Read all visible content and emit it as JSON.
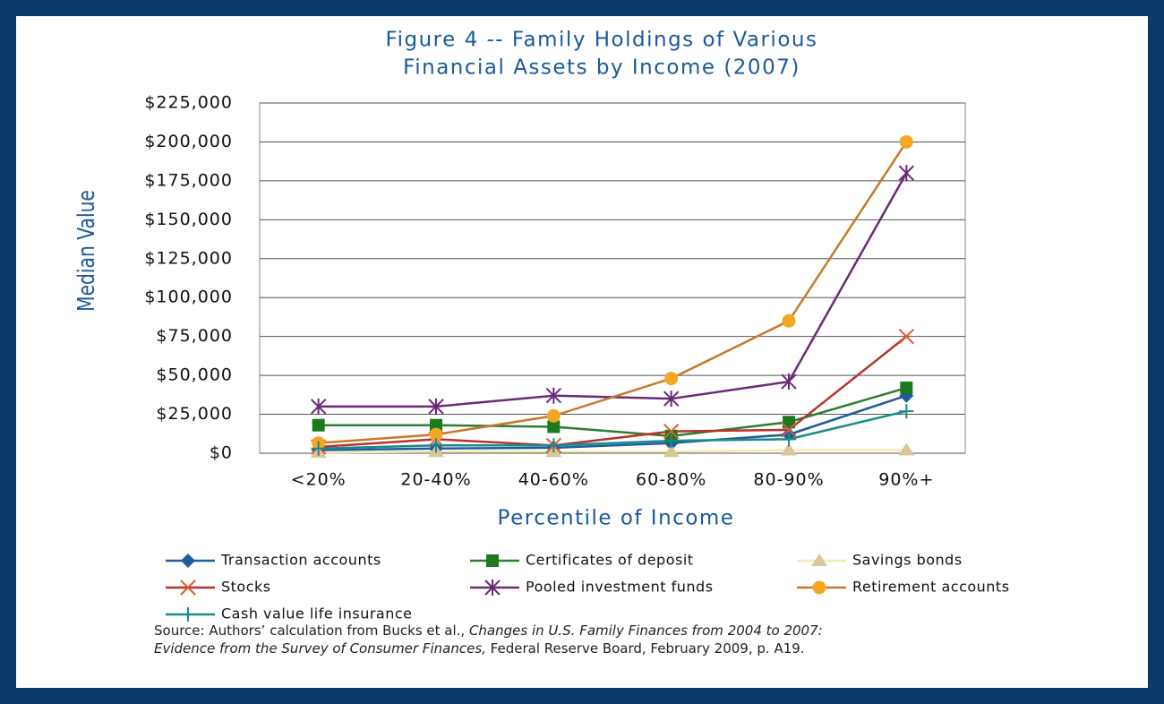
{
  "chart_data": {
    "type": "line",
    "title": [
      "Figure 4 -- Family Holdings of Various",
      "Financial Assets by Income (2007)"
    ],
    "y_label": "Median Value",
    "x_label": "Percentile of Income",
    "categories": [
      "<20%",
      "20-40%",
      "40-60%",
      "60-80%",
      "80-90%",
      "90%+"
    ],
    "ylim": [
      0,
      225000
    ],
    "yticks": [
      {
        "value": 0,
        "label": "$0"
      },
      {
        "value": 25000,
        "label": "$25,000"
      },
      {
        "value": 50000,
        "label": "$50,000"
      },
      {
        "value": 75000,
        "label": "$75,000"
      },
      {
        "value": 100000,
        "label": "$100,000"
      },
      {
        "value": 125000,
        "label": "$125,000"
      },
      {
        "value": 150000,
        "label": "$150,000"
      },
      {
        "value": 175000,
        "label": "$175,000"
      },
      {
        "value": 200000,
        "label": "$200,000"
      },
      {
        "value": 225000,
        "label": "$225,000"
      }
    ],
    "grid": true,
    "series": [
      {
        "name": "Transaction accounts",
        "color": "#1f5b9e",
        "marker": "diamond",
        "marker_color": "#1f5b9e",
        "values": [
          2000,
          3000,
          3500,
          6500,
          12000,
          37000
        ]
      },
      {
        "name": "Certificates of deposit",
        "color": "#2e7d32",
        "marker": "square",
        "marker_color": "#1b7a1b",
        "values": [
          18000,
          18000,
          17000,
          11000,
          20000,
          42000
        ]
      },
      {
        "name": "Savings bonds",
        "color": "#f3ecb0",
        "marker": "triangle",
        "marker_color": "#d8c898",
        "values": [
          500,
          1000,
          1000,
          1000,
          2000,
          2000
        ]
      },
      {
        "name": "Stocks",
        "color": "#b8322a",
        "marker": "x",
        "marker_color": "#e05a30",
        "values": [
          4000,
          9000,
          5000,
          14000,
          15000,
          75000
        ]
      },
      {
        "name": "Pooled investment funds",
        "color": "#6b2a78",
        "marker": "asterisk",
        "marker_color": "#6b2a78",
        "values": [
          30000,
          30000,
          37000,
          35000,
          46000,
          180000
        ]
      },
      {
        "name": "Retirement accounts",
        "color": "#c8782a",
        "marker": "circle",
        "marker_color": "#f5a623",
        "values": [
          6500,
          12000,
          24000,
          48000,
          85000,
          200000
        ]
      },
      {
        "name": "Cash value life insurance",
        "color": "#1a8a8a",
        "marker": "plus",
        "marker_color": "#1a8a8a",
        "values": [
          3000,
          5000,
          5000,
          8000,
          9000,
          27000
        ]
      }
    ],
    "source": {
      "prefix": "Source: Authors’ calculation from Bucks et al., ",
      "title_1": "Changes in U.S. Family Finances from 2004 to 2007:",
      "title_2": "Evidence from the Survey of Consumer Finances,",
      "suffix": " Federal Reserve Board, February 2009, p. A19."
    }
  }
}
